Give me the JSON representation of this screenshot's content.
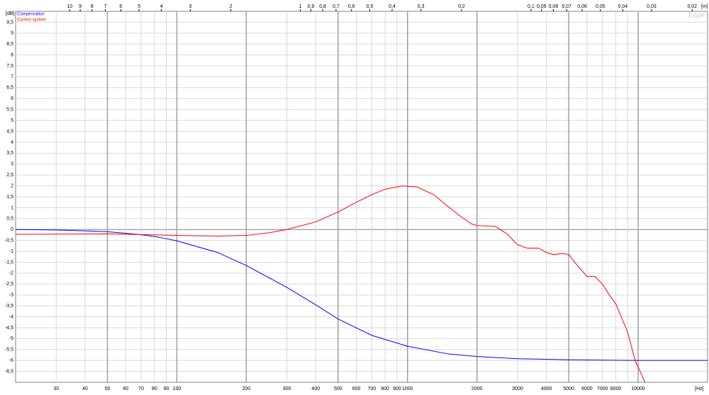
{
  "chart_data": {
    "type": "line",
    "log_x": true,
    "grid": true,
    "y_unit": "[dB]",
    "x_unit": "[Hz]",
    "x2_unit": "[m]",
    "watermark": "Edge",
    "legend_position": "upper left",
    "xlim": [
      20,
      20000
    ],
    "ylim": [
      -7,
      10
    ],
    "xticks": [
      30,
      40,
      50,
      60,
      70,
      80,
      90,
      100,
      200,
      300,
      400,
      500,
      600,
      700,
      800,
      900,
      1000,
      2000,
      3000,
      4000,
      5000,
      6000,
      7000,
      8000,
      10000
    ],
    "x_minor_ticks": [
      9000
    ],
    "x2ticks": [
      10,
      9,
      8,
      7,
      6,
      5,
      4,
      3,
      2,
      1,
      {
        "value": 0.9,
        "label": "0,9"
      },
      {
        "value": 0.8,
        "label": "0,8"
      },
      {
        "value": 0.7,
        "label": "0,7"
      },
      {
        "value": 0.6,
        "label": "0,6"
      },
      {
        "value": 0.5,
        "label": "0,5"
      },
      {
        "value": 0.4,
        "label": "0,4"
      },
      {
        "value": 0.3,
        "label": "0,3"
      },
      {
        "value": 0.2,
        "label": "0,2"
      },
      {
        "value": 0.1,
        "label": "0,1"
      },
      {
        "value": 0.09,
        "label": "0,09"
      },
      {
        "value": 0.08,
        "label": "0,08"
      },
      {
        "value": 0.07,
        "label": "0,07"
      },
      {
        "value": 0.06,
        "label": "0,06"
      },
      {
        "value": 0.05,
        "label": "0,05"
      },
      {
        "value": 0.04,
        "label": "0,04"
      },
      {
        "value": 0.03,
        "label": "0,03"
      },
      {
        "value": 0.02,
        "label": "0,02"
      }
    ],
    "yticks": [
      {
        "value": 9.5,
        "label": "9,5"
      },
      9,
      {
        "value": 8.5,
        "label": "8,5"
      },
      8,
      {
        "value": 7.5,
        "label": "7,5"
      },
      7,
      {
        "value": 6.5,
        "label": "6,5"
      },
      6,
      {
        "value": 5.5,
        "label": "5,5"
      },
      5,
      {
        "value": 4.5,
        "label": "4,5"
      },
      4,
      {
        "value": 3.5,
        "label": "3,5"
      },
      3,
      {
        "value": 2.5,
        "label": "2,5"
      },
      2,
      {
        "value": 1.5,
        "label": "1,5"
      },
      1,
      {
        "value": 0.5,
        "label": "0,5"
      },
      0,
      {
        "value": -0.5,
        "label": "-0,5"
      },
      -1,
      {
        "value": -1.5,
        "label": "-1,5"
      },
      -2,
      {
        "value": -2.5,
        "label": "-2,5"
      },
      -3,
      {
        "value": -3.5,
        "label": "-3,5"
      },
      -4,
      {
        "value": -4.5,
        "label": "-4,5"
      },
      -5,
      {
        "value": -5.5,
        "label": "-5,5"
      },
      -6,
      {
        "value": -6.5,
        "label": "-6,5"
      }
    ],
    "series": [
      {
        "name": "Compensation",
        "color": "#0000ff",
        "x": [
          20,
          30,
          40,
          50,
          60,
          70,
          80,
          90,
          100,
          150,
          200,
          300,
          400,
          500,
          700,
          1000,
          1500,
          2000,
          3000,
          5000,
          10000,
          20000
        ],
        "values": [
          0,
          -0.02,
          -0.06,
          -0.1,
          -0.17,
          -0.24,
          -0.32,
          -0.42,
          -0.52,
          -1.05,
          -1.65,
          -2.65,
          -3.45,
          -4.1,
          -4.85,
          -5.35,
          -5.7,
          -5.82,
          -5.92,
          -5.97,
          -6.0,
          -6.0
        ]
      },
      {
        "name": "Current system",
        "color": "#ff0000",
        "x": [
          20,
          50,
          100,
          150,
          200,
          250,
          300,
          400,
          500,
          600,
          700,
          800,
          950,
          1100,
          1300,
          1500,
          1700,
          1900,
          2000,
          2400,
          2700,
          3000,
          3300,
          3700,
          4000,
          4300,
          4700,
          5000,
          5500,
          6000,
          6500,
          7000,
          7500,
          8000,
          9000,
          9700,
          10300,
          10700
        ],
        "values": [
          -0.22,
          -0.2,
          -0.27,
          -0.3,
          -0.27,
          -0.15,
          0.0,
          0.35,
          0.8,
          1.25,
          1.6,
          1.85,
          2.0,
          1.95,
          1.6,
          1.05,
          0.6,
          0.25,
          0.18,
          0.15,
          -0.2,
          -0.7,
          -0.85,
          -0.85,
          -1.05,
          -1.15,
          -1.1,
          -1.15,
          -1.7,
          -2.15,
          -2.15,
          -2.5,
          -3.0,
          -3.4,
          -4.7,
          -6.0,
          -6.6,
          -7.0
        ]
      }
    ]
  }
}
